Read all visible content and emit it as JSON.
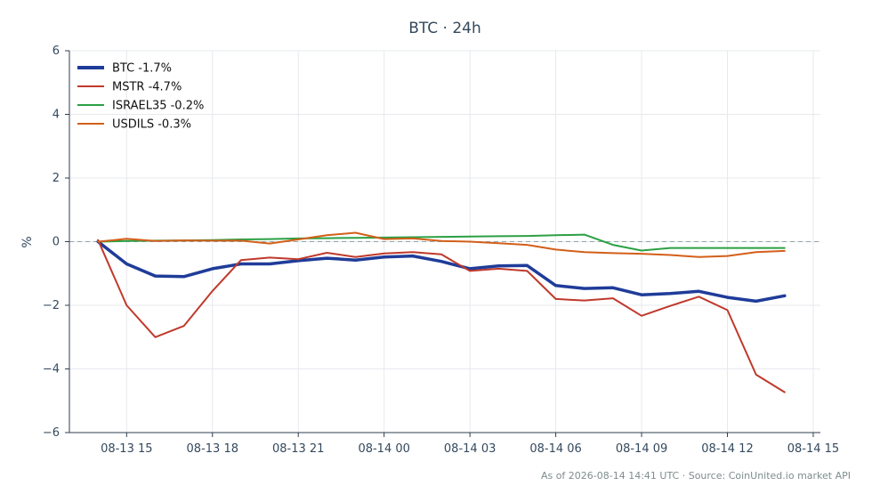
{
  "chart_data": {
    "type": "line",
    "title": "BTC · 24h",
    "xlabel": "",
    "ylabel": "%",
    "ylim": [
      -6,
      6
    ],
    "yticks": [
      -6,
      -4,
      -2,
      0,
      2,
      4,
      6
    ],
    "ytick_labels": [
      "−6",
      "−4",
      "−2",
      "0",
      "2",
      "4",
      "6"
    ],
    "xlim": [
      "2026-08-13 13:00",
      "2026-08-14 15:15"
    ],
    "xticks": [
      "2026-08-13 15:00",
      "2026-08-13 18:00",
      "2026-08-13 21:00",
      "2026-08-14 00:00",
      "2026-08-14 03:00",
      "2026-08-14 06:00",
      "2026-08-14 09:00",
      "2026-08-14 12:00",
      "2026-08-14 15:00"
    ],
    "xtick_labels": [
      "08-13 15",
      "08-13 18",
      "08-13 21",
      "08-14 00",
      "08-14 03",
      "08-14 06",
      "08-14 09",
      "08-14 12",
      "08-14 15"
    ],
    "grid": true,
    "zero_line": true,
    "legend_position": "top-left",
    "x": [
      "2026-08-13 14:00",
      "2026-08-13 15:00",
      "2026-08-13 16:00",
      "2026-08-13 17:00",
      "2026-08-13 18:00",
      "2026-08-13 19:00",
      "2026-08-13 20:00",
      "2026-08-13 21:00",
      "2026-08-13 22:00",
      "2026-08-13 23:00",
      "2026-08-14 00:00",
      "2026-08-14 01:00",
      "2026-08-14 02:00",
      "2026-08-14 03:00",
      "2026-08-14 04:00",
      "2026-08-14 05:00",
      "2026-08-14 06:00",
      "2026-08-14 07:00",
      "2026-08-14 08:00",
      "2026-08-14 09:00",
      "2026-08-14 10:00",
      "2026-08-14 11:00",
      "2026-08-14 12:00",
      "2026-08-14 13:00",
      "2026-08-14 14:00"
    ],
    "series": [
      {
        "name": "BTC -1.7%",
        "color": "#1f3c99",
        "values": [
          0.0,
          -0.7,
          -1.08,
          -1.1,
          -0.85,
          -0.7,
          -0.7,
          -0.6,
          -0.52,
          -0.58,
          -0.48,
          -0.45,
          -0.62,
          -0.85,
          -0.76,
          -0.75,
          -1.38,
          -1.47,
          -1.45,
          -1.67,
          -1.63,
          -1.56,
          -1.75,
          -1.87,
          -1.7
        ]
      },
      {
        "name": "MSTR -4.7%",
        "color": "#c0392b",
        "values": [
          0.05,
          -2.0,
          -3.0,
          -2.65,
          -1.55,
          -0.58,
          -0.5,
          -0.55,
          -0.35,
          -0.48,
          -0.37,
          -0.33,
          -0.4,
          -0.92,
          -0.85,
          -0.92,
          -1.8,
          -1.85,
          -1.78,
          -2.33,
          -2.02,
          -1.73,
          -2.15,
          -4.18,
          -4.73
        ]
      },
      {
        "name": "ISRAEL35 -0.2%",
        "color": "#2ca043",
        "values": [
          0.0,
          0.02,
          0.03,
          0.04,
          0.05,
          0.07,
          0.08,
          0.1,
          0.11,
          0.12,
          0.13,
          0.14,
          0.15,
          0.16,
          0.17,
          0.18,
          0.2,
          0.22,
          -0.1,
          -0.28,
          -0.2,
          -0.2,
          -0.2,
          -0.2,
          -0.2
        ]
      },
      {
        "name": "USDILS -0.3%",
        "color": "#d35f1a",
        "values": [
          0.0,
          0.09,
          0.02,
          0.04,
          0.03,
          0.03,
          -0.06,
          0.07,
          0.2,
          0.28,
          0.08,
          0.1,
          0.02,
          0.0,
          -0.05,
          -0.1,
          -0.25,
          -0.33,
          -0.36,
          -0.38,
          -0.42,
          -0.48,
          -0.45,
          -0.33,
          -0.29
        ]
      }
    ]
  },
  "source_note": "As of 2026-08-14 14:41 UTC · Source: CoinUnited.io market API"
}
